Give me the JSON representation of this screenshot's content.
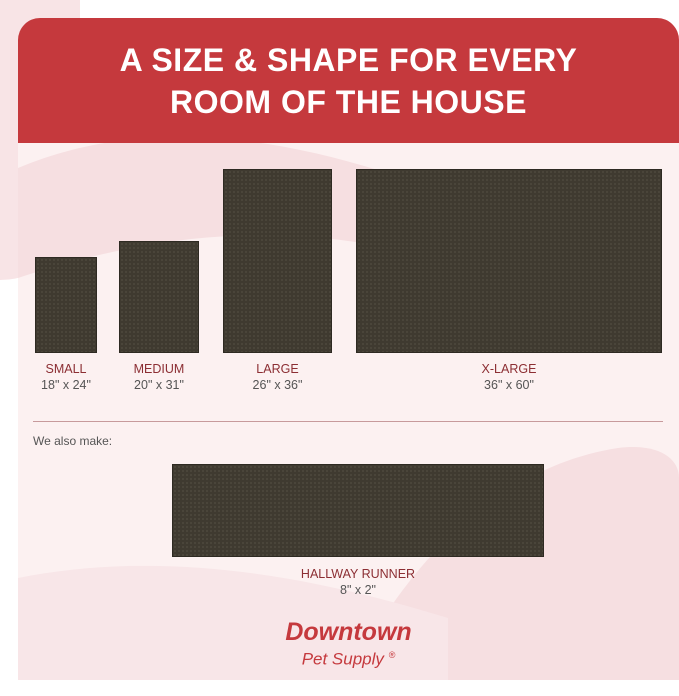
{
  "header": {
    "title_line1": "A SIZE & SHAPE FOR EVERY",
    "title_line2": "ROOM OF THE HOUSE"
  },
  "colors": {
    "brand_red": "#c5393d",
    "mat": "#3f3a30",
    "background": "#fcf1f1"
  },
  "sizes": [
    {
      "name": "SMALL",
      "dims": "18\" x 24\""
    },
    {
      "name": "MEDIUM",
      "dims": "20\" x 31\""
    },
    {
      "name": "LARGE",
      "dims": "26\" x 36\""
    },
    {
      "name": "X-LARGE",
      "dims": "36\" x 60\""
    }
  ],
  "also_make": {
    "label": "We also make:",
    "name": "HALLWAY RUNNER",
    "dims": "8\" x 2\""
  },
  "logo": {
    "line1": "Downtown",
    "line2": "Pet Supply",
    "mark": "®"
  }
}
